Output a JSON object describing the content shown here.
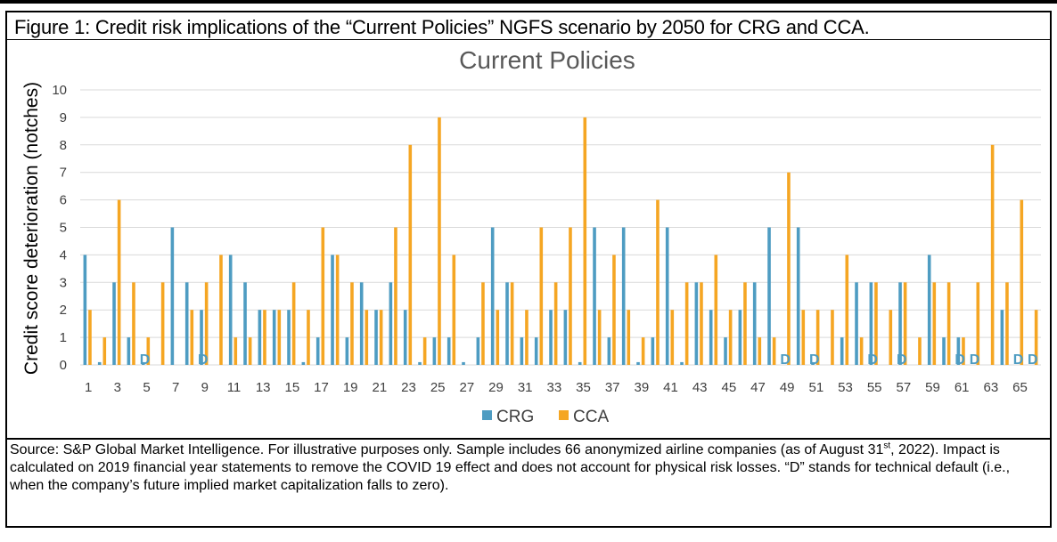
{
  "figure_title": "Figure 1: Credit risk implications of the “Current Policies” NGFS scenario by 2050 for CRG and CCA.",
  "source": {
    "part1": "Source: S&P Global Market Intelligence. For illustrative purposes only. Sample includes 66 anonymized airline companies (as of August 31",
    "sup": "st",
    "part2": ", 2022). Impact is calculated on 2019 financial year statements to remove the COVID 19 effect and does not account for physical risk losses. “D” stands for technical default (i.e., when the company’s future implied market capitalization falls to zero)."
  },
  "colors": {
    "crg": "#4E9CC2",
    "cca": "#F5A623",
    "grid": "#D9D9D9",
    "default_label": "#4E9CC2",
    "title": "#595959",
    "axis_text": "#404040"
  },
  "chart_data": {
    "type": "bar",
    "title": "Current Policies",
    "ylabel": "Credit score deterioration (notches)",
    "xlabel": "",
    "ylim": [
      0,
      10
    ],
    "yticks": [
      0,
      1,
      2,
      3,
      4,
      5,
      6,
      7,
      8,
      9,
      10
    ],
    "categories": [
      1,
      2,
      3,
      4,
      5,
      6,
      7,
      8,
      9,
      10,
      11,
      12,
      13,
      14,
      15,
      16,
      17,
      18,
      19,
      20,
      21,
      22,
      23,
      24,
      25,
      26,
      27,
      28,
      29,
      30,
      31,
      32,
      33,
      34,
      35,
      36,
      37,
      38,
      39,
      40,
      41,
      42,
      43,
      44,
      45,
      46,
      47,
      48,
      49,
      50,
      51,
      52,
      53,
      54,
      55,
      56,
      57,
      58,
      59,
      60,
      61,
      62,
      63,
      64,
      65,
      66
    ],
    "xtick_labels": [
      "1",
      "3",
      "5",
      "7",
      "9",
      "11",
      "13",
      "15",
      "17",
      "19",
      "21",
      "23",
      "25",
      "27",
      "29",
      "31",
      "33",
      "35",
      "37",
      "39",
      "41",
      "43",
      "45",
      "47",
      "49",
      "51",
      "53",
      "55",
      "57",
      "59",
      "61",
      "63",
      "65"
    ],
    "series": [
      {
        "name": "CRG",
        "values": [
          4,
          0.1,
          3,
          1,
          0.1,
          0,
          5,
          3,
          2,
          0,
          4,
          3,
          2,
          2,
          2,
          0.1,
          1,
          4,
          1,
          3,
          2,
          3,
          2,
          0.1,
          1,
          1,
          0.1,
          1,
          5,
          3,
          1,
          1,
          2,
          2,
          0.1,
          5,
          1,
          5,
          0.1,
          1,
          5,
          0.1,
          3,
          2,
          1,
          2,
          3,
          5,
          0,
          5,
          0.1,
          0,
          1,
          3,
          3,
          0,
          3,
          0,
          4,
          1,
          1,
          0,
          0,
          2,
          0,
          0
        ]
      },
      {
        "name": "CCA",
        "values": [
          2,
          1,
          6,
          3,
          1,
          3,
          0,
          2,
          3,
          4,
          1,
          1,
          2,
          2,
          3,
          2,
          5,
          4,
          3,
          2,
          2,
          5,
          8,
          1,
          9,
          4,
          0,
          3,
          2,
          3,
          2,
          5,
          3,
          5,
          9,
          2,
          4,
          2,
          1,
          6,
          2,
          3,
          3,
          4,
          2,
          3,
          1,
          1,
          7,
          2,
          2,
          2,
          4,
          1,
          3,
          2,
          3,
          1,
          3,
          3,
          1,
          3,
          8,
          3,
          6,
          2
        ]
      }
    ],
    "default_markers": [
      {
        "company": 5,
        "label": "D"
      },
      {
        "company": 9,
        "label": "D"
      },
      {
        "company": 49,
        "label": "D"
      },
      {
        "company": 51,
        "label": "D"
      },
      {
        "company": 55,
        "label": "D"
      },
      {
        "company": 57,
        "label": "D"
      },
      {
        "company": 61,
        "label": "D"
      },
      {
        "company": 62,
        "label": "D"
      },
      {
        "company": 65,
        "label": "D"
      },
      {
        "company": 66,
        "label": "D"
      }
    ],
    "legend_position": "bottom"
  }
}
